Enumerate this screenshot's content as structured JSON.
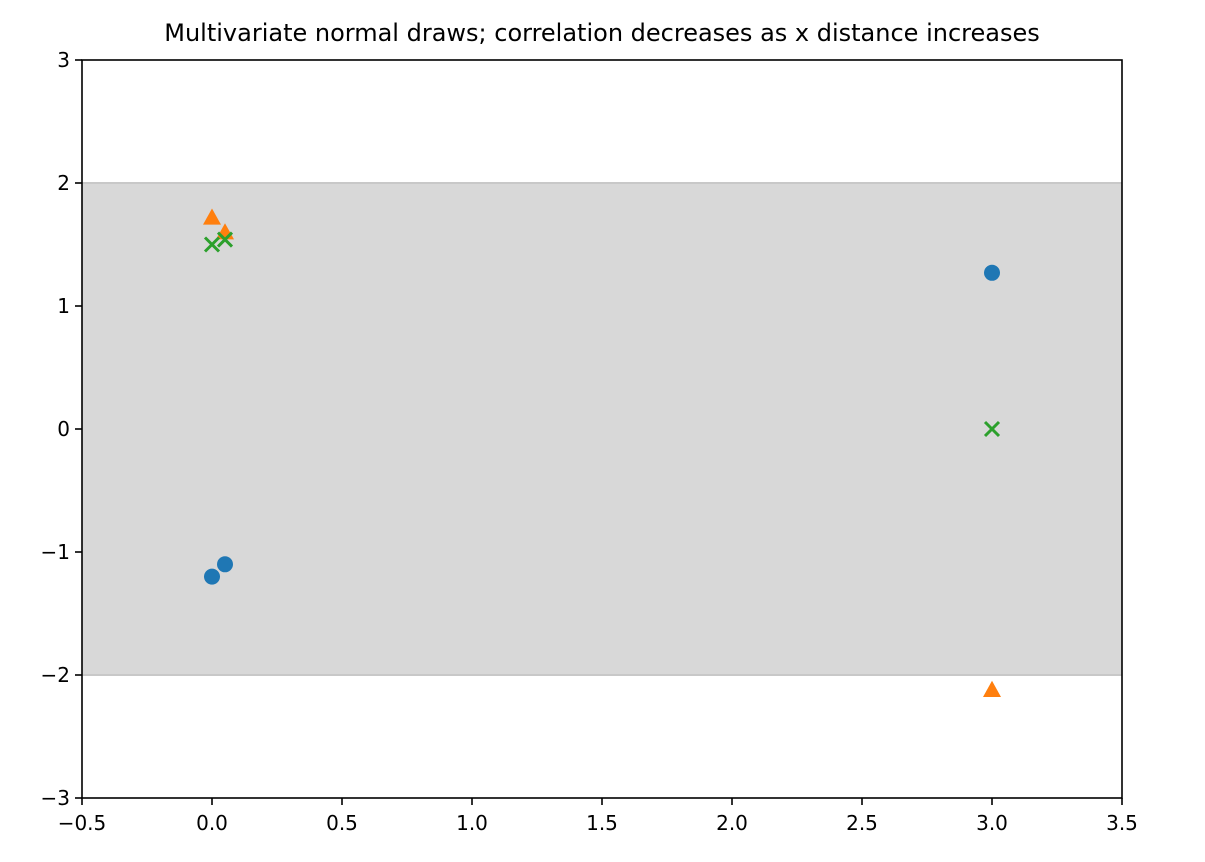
{
  "chart_data": {
    "type": "scatter",
    "title": "Multivariate normal draws; correlation decreases as x distance increases",
    "xlabel": "",
    "ylabel": "",
    "xlim": [
      -0.5,
      3.5
    ],
    "ylim": [
      -3,
      3
    ],
    "x_ticks": [
      -0.5,
      0.0,
      0.5,
      1.0,
      1.5,
      2.0,
      2.5,
      3.0,
      3.5
    ],
    "x_tick_labels": [
      "−0.5",
      "0.0",
      "0.5",
      "1.0",
      "1.5",
      "2.0",
      "2.5",
      "3.0",
      "3.5"
    ],
    "y_ticks": [
      3,
      2,
      1,
      0,
      -1,
      -2,
      -3
    ],
    "y_tick_labels": [
      "3",
      "2",
      "1",
      "0",
      "−1",
      "−2",
      "−3"
    ],
    "grid": false,
    "legend": "none",
    "band": {
      "y_min": -2,
      "y_max": 2,
      "color": "#d8d8d8",
      "edge_color": "#c8c8c8"
    },
    "series": [
      {
        "marker": "circle",
        "color": "#1f77b4",
        "x": [
          0.0,
          0.05,
          3.0
        ],
        "y": [
          -1.2,
          -1.1,
          1.27
        ]
      },
      {
        "marker": "triangle",
        "color": "#ff7f0e",
        "x": [
          0.0,
          0.05,
          3.0
        ],
        "y": [
          1.72,
          1.6,
          -2.12
        ]
      },
      {
        "marker": "x",
        "color": "#2ca02c",
        "x": [
          0.0,
          0.05,
          3.0
        ],
        "y": [
          1.5,
          1.54,
          0.0
        ]
      }
    ]
  }
}
